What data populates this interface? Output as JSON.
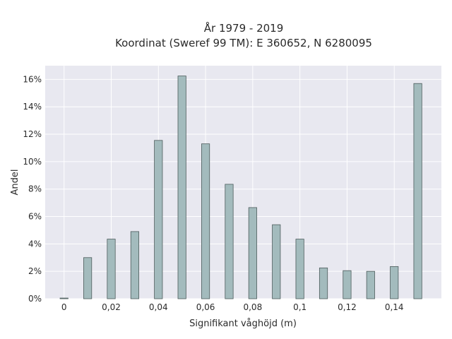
{
  "chart_data": {
    "type": "bar",
    "title": "År 1979 - 2019",
    "subtitle": "Koordinat (Sweref 99 TM): E 360652, N 6280095",
    "xlabel": "Signifikant våghöjd (m)",
    "ylabel": "Andel",
    "xlim": [
      -0.008,
      0.16
    ],
    "ylim": [
      0,
      0.17
    ],
    "grid": true,
    "x_ticks": [
      {
        "value": 0,
        "label": "0"
      },
      {
        "value": 0.02,
        "label": "0,02"
      },
      {
        "value": 0.04,
        "label": "0,04"
      },
      {
        "value": 0.06,
        "label": "0,06"
      },
      {
        "value": 0.08,
        "label": "0,08"
      },
      {
        "value": 0.1,
        "label": "0,1"
      },
      {
        "value": 0.12,
        "label": "0,12"
      },
      {
        "value": 0.14,
        "label": "0,14"
      }
    ],
    "y_ticks": [
      {
        "value": 0,
        "label": "0%"
      },
      {
        "value": 0.02,
        "label": "2%"
      },
      {
        "value": 0.04,
        "label": "4%"
      },
      {
        "value": 0.06,
        "label": "6%"
      },
      {
        "value": 0.08,
        "label": "8%"
      },
      {
        "value": 0.1,
        "label": "10%"
      },
      {
        "value": 0.12,
        "label": "12%"
      },
      {
        "value": 0.14,
        "label": "14%"
      },
      {
        "value": 0.16,
        "label": "16%"
      }
    ],
    "bar_width": 0.0034,
    "x": [
      0,
      0.01,
      0.02,
      0.03,
      0.04,
      0.05,
      0.06,
      0.07,
      0.08,
      0.09,
      0.1,
      0.11,
      0.12,
      0.13,
      0.14,
      0.15
    ],
    "values": [
      0.0005,
      0.03,
      0.0435,
      0.049,
      0.1155,
      0.1625,
      0.113,
      0.0835,
      0.0665,
      0.054,
      0.0435,
      0.0225,
      0.0205,
      0.02,
      0.0235,
      0.157
    ],
    "colors": {
      "bar_fill": "#a3bbbd",
      "bar_edge": "#4d5c5c",
      "plot_bg": "#e8e8f0",
      "grid": "#ffffff"
    }
  }
}
